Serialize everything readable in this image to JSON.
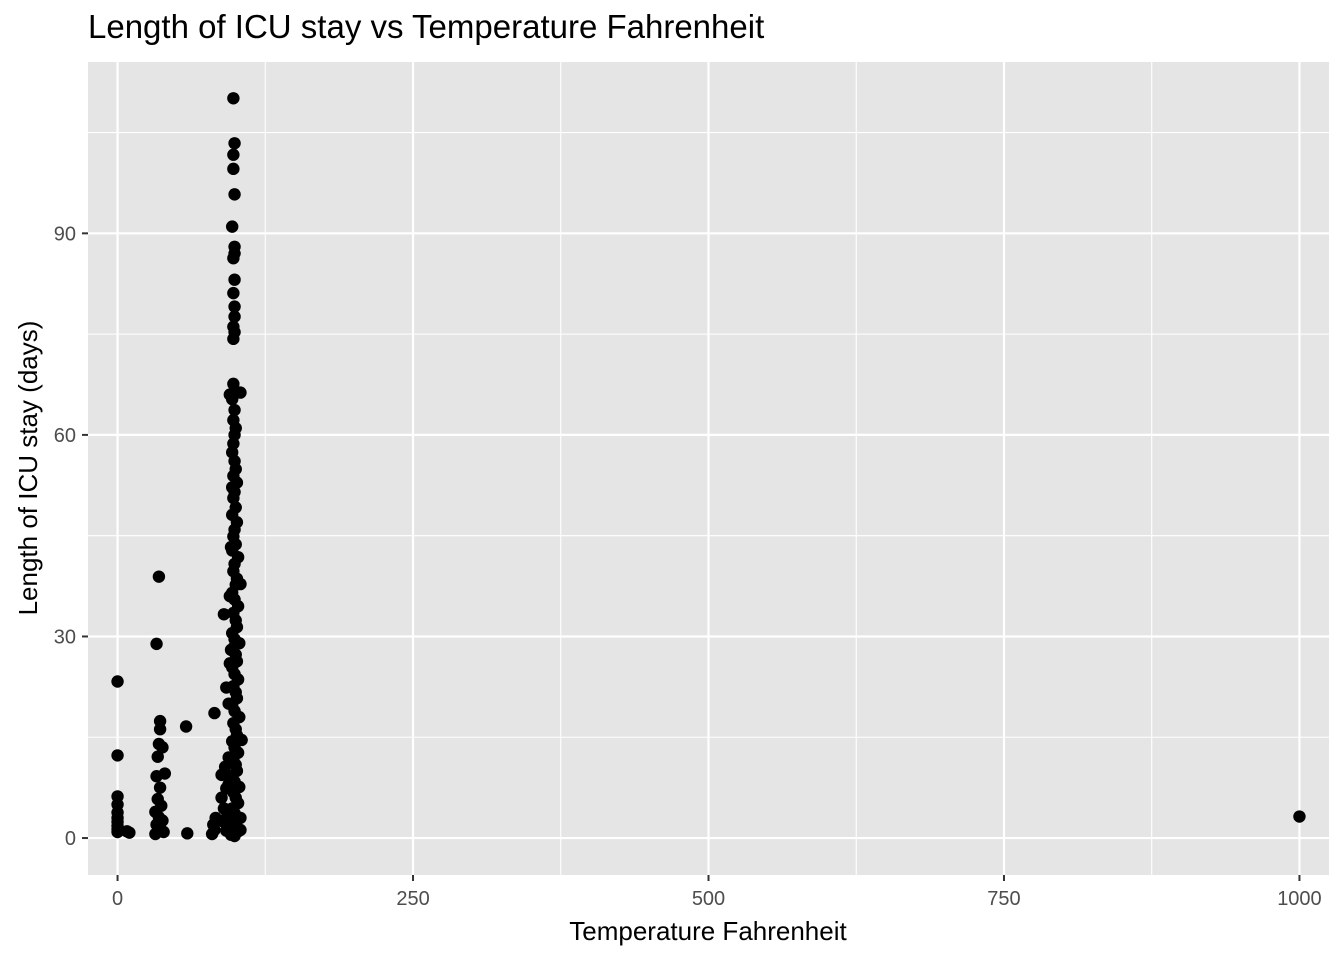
{
  "chart_data": {
    "type": "scatter",
    "title": "Length of ICU stay vs Temperature Fahrenheit",
    "xlabel": "Temperature Fahrenheit",
    "ylabel": "Length of ICU stay (days)",
    "xlim": [
      -25,
      1025
    ],
    "ylim": [
      -5.5,
      115.5
    ],
    "x_ticks": [
      0,
      250,
      500,
      750,
      1000
    ],
    "x_tick_labels": [
      "0",
      "250",
      "500",
      "750",
      "1000"
    ],
    "x_minor_ticks": [
      125,
      375,
      625,
      875
    ],
    "y_ticks": [
      0,
      30,
      60,
      90
    ],
    "y_tick_labels": [
      "0",
      "30",
      "60",
      "90"
    ],
    "y_minor_ticks": [
      15,
      45,
      75,
      105
    ],
    "grid": true,
    "legend": "none",
    "colors": {
      "panel": "#e5e5e5",
      "grid": "#ffffff",
      "point": "#000000",
      "tick_text": "#4d4d4d"
    },
    "series": [
      {
        "points": [
          [
            0,
            23.3
          ],
          [
            0,
            12.3
          ],
          [
            0,
            6.2
          ],
          [
            0,
            5.0
          ],
          [
            0,
            3.8
          ],
          [
            0,
            3.0
          ],
          [
            0,
            2.4
          ],
          [
            0,
            1.8
          ],
          [
            0,
            1.3
          ],
          [
            0,
            0.9
          ],
          [
            8,
            1.0
          ],
          [
            10,
            0.8
          ],
          [
            33,
            28.9
          ],
          [
            35,
            38.9
          ],
          [
            36,
            17.4
          ],
          [
            36,
            16.2
          ],
          [
            35,
            14.0
          ],
          [
            34,
            12.1
          ],
          [
            38,
            13.5
          ],
          [
            33,
            9.2
          ],
          [
            40,
            9.6
          ],
          [
            36,
            7.5
          ],
          [
            34,
            5.8
          ],
          [
            37,
            4.8
          ],
          [
            32,
            3.9
          ],
          [
            35,
            3.1
          ],
          [
            38,
            2.6
          ],
          [
            33,
            2.0
          ],
          [
            36,
            1.5
          ],
          [
            34,
            1.0
          ],
          [
            32,
            0.6
          ],
          [
            39,
            0.9
          ],
          [
            58,
            16.6
          ],
          [
            59,
            0.7
          ],
          [
            82,
            18.6
          ],
          [
            83,
            3.0
          ],
          [
            81,
            2.0
          ],
          [
            82,
            1.2
          ],
          [
            80,
            0.6
          ],
          [
            88,
            9.4
          ],
          [
            88,
            6.0
          ],
          [
            90,
            4.4
          ],
          [
            89,
            2.5
          ],
          [
            91,
            10.6
          ],
          [
            92,
            7.4
          ],
          [
            93,
            3.5
          ],
          [
            92,
            1.1
          ],
          [
            90,
            33.3
          ],
          [
            92,
            22.4
          ],
          [
            94,
            20.0
          ],
          [
            95,
            26.0
          ],
          [
            96,
            28.0
          ],
          [
            95,
            36.0
          ],
          [
            96,
            43.3
          ],
          [
            97,
            52.2
          ],
          [
            95,
            66.0
          ],
          [
            98,
            110.1
          ],
          [
            99,
            103.4
          ],
          [
            98,
            101.7
          ],
          [
            98,
            99.6
          ],
          [
            99,
            95.8
          ],
          [
            97,
            91.0
          ],
          [
            99,
            88.0
          ],
          [
            99,
            87.0
          ],
          [
            98,
            86.3
          ],
          [
            99,
            83.1
          ],
          [
            98,
            81.1
          ],
          [
            99,
            79.1
          ],
          [
            99,
            77.6
          ],
          [
            98,
            76.1
          ],
          [
            99,
            75.3
          ],
          [
            98,
            74.3
          ],
          [
            98,
            67.6
          ],
          [
            99,
            66.6
          ],
          [
            100,
            66.3
          ],
          [
            104,
            66.3
          ],
          [
            97,
            65.3
          ],
          [
            99,
            63.7
          ],
          [
            98,
            62.2
          ],
          [
            100,
            61.0
          ],
          [
            99,
            60.0
          ],
          [
            98,
            58.7
          ],
          [
            97,
            57.4
          ],
          [
            99,
            56.1
          ],
          [
            100,
            54.9
          ],
          [
            98,
            53.9
          ],
          [
            101,
            52.9
          ],
          [
            99,
            51.5
          ],
          [
            98,
            50.6
          ],
          [
            100,
            49.2
          ],
          [
            97,
            48.1
          ],
          [
            101,
            47.0
          ],
          [
            99,
            45.9
          ],
          [
            98,
            44.9
          ],
          [
            100,
            43.7
          ],
          [
            97,
            42.8
          ],
          [
            102,
            41.8
          ],
          [
            99,
            40.8
          ],
          [
            98,
            39.7
          ],
          [
            101,
            38.6
          ],
          [
            100,
            37.7
          ],
          [
            104,
            37.8
          ],
          [
            97,
            36.5
          ],
          [
            99,
            35.5
          ],
          [
            102,
            34.5
          ],
          [
            98,
            33.5
          ],
          [
            100,
            32.4
          ],
          [
            101,
            31.4
          ],
          [
            97,
            30.5
          ],
          [
            99,
            29.6
          ],
          [
            103,
            29.0
          ],
          [
            98,
            28.3
          ],
          [
            100,
            27.3
          ],
          [
            101,
            26.3
          ],
          [
            97,
            25.4
          ],
          [
            99,
            24.4
          ],
          [
            102,
            23.6
          ],
          [
            98,
            22.6
          ],
          [
            100,
            21.7
          ],
          [
            101,
            20.8
          ],
          [
            97,
            19.8
          ],
          [
            99,
            18.9
          ],
          [
            103,
            18.0
          ],
          [
            98,
            17.1
          ],
          [
            100,
            16.2
          ],
          [
            101,
            15.3
          ],
          [
            105,
            14.6
          ],
          [
            97,
            14.4
          ],
          [
            99,
            13.5
          ],
          [
            102,
            12.7
          ],
          [
            98,
            11.8
          ],
          [
            100,
            10.9
          ],
          [
            101,
            10.0
          ],
          [
            96,
            9.2
          ],
          [
            99,
            8.4
          ],
          [
            103,
            7.6
          ],
          [
            98,
            6.8
          ],
          [
            100,
            6.0
          ],
          [
            102,
            5.2
          ],
          [
            97,
            4.4
          ],
          [
            99,
            3.7
          ],
          [
            104,
            3.0
          ],
          [
            98,
            2.3
          ],
          [
            100,
            1.6
          ],
          [
            102,
            1.0
          ],
          [
            96,
            0.5
          ],
          [
            99,
            0.3
          ],
          [
            104,
            1.2
          ],
          [
            94,
            12.0
          ],
          [
            94,
            8.0
          ],
          [
            95,
            4.0
          ],
          [
            95,
            1.5
          ],
          [
            1000,
            3.2
          ]
        ]
      }
    ]
  }
}
